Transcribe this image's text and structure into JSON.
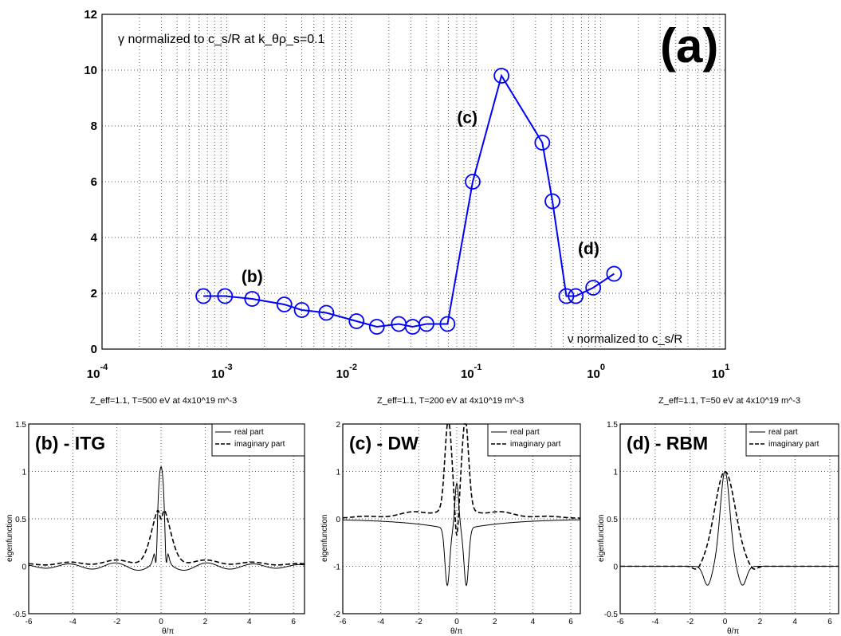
{
  "chart_data": [
    {
      "type": "line",
      "panel_label": "(a)",
      "annotation": "γ normalized to c_s/R at k_θρ_s=0.1",
      "xlabel": "ν normalized to c_s/R",
      "ylabel": "",
      "xscale": "log",
      "xlim_exp": [
        -4,
        1
      ],
      "ylim": [
        0,
        12
      ],
      "grid": true,
      "xtick_exponents": [
        "-4",
        "-3",
        "-2",
        "-1",
        "0",
        "1"
      ],
      "ytick_labels": [
        "0",
        "2",
        "4",
        "6",
        "8",
        "10",
        "12"
      ],
      "series": [
        {
          "color": "#0000ff",
          "marker": "circle",
          "x": [
            0.00065,
            0.00097,
            0.0016,
            0.0029,
            0.004,
            0.0063,
            0.011,
            0.016,
            0.024,
            0.031,
            0.04,
            0.059,
            0.094,
            0.16,
            0.34,
            0.41,
            0.53,
            0.63,
            0.87,
            1.28
          ],
          "y": [
            1.9,
            1.9,
            1.8,
            1.6,
            1.4,
            1.3,
            1.0,
            0.8,
            0.9,
            0.8,
            0.9,
            0.9,
            6.0,
            9.8,
            7.4,
            5.3,
            1.9,
            1.9,
            2.2,
            2.7
          ]
        }
      ],
      "point_labels": [
        {
          "text": "(b)",
          "x": 0.0016,
          "y": 2.4
        },
        {
          "text": "(c)",
          "x": 0.085,
          "y": 8.1
        },
        {
          "text": "(d)",
          "x": 0.8,
          "y": 3.4
        }
      ]
    },
    {
      "type": "line",
      "caption": "Z_eff=1.1, T=500 eV at 4x10^19 m^-3",
      "panel_label": "(b) - ITG",
      "xlabel": "θ/π",
      "ylabel": "eigenfunction",
      "xlim": [
        -6,
        6.5
      ],
      "ylim": [
        -0.5,
        1.5
      ],
      "xtick_labels": [
        "-6",
        "-4",
        "-2",
        "0",
        "2",
        "4",
        "6"
      ],
      "ytick_labels": [
        "-0.5",
        "0",
        "0.5",
        "1",
        "1.5"
      ],
      "legend": [
        "real part",
        "imaginary part"
      ],
      "legend_position": "top-right",
      "grid": true
    },
    {
      "type": "line",
      "caption": "Z_eff=1.1, T=200 eV at 4x10^19 m^-3",
      "panel_label": "(c) - DW",
      "xlabel": "θ/π",
      "ylabel": "eigenfunction",
      "xlim": [
        -6,
        6.5
      ],
      "ylim": [
        -2,
        2
      ],
      "xtick_labels": [
        "-6",
        "-4",
        "-2",
        "0",
        "2",
        "4",
        "6"
      ],
      "ytick_labels": [
        "-2",
        "-1",
        "0",
        "1",
        "2"
      ],
      "legend": [
        "real part",
        "imaginary part"
      ],
      "legend_position": "top-right",
      "grid": true
    },
    {
      "type": "line",
      "caption": "Z_eff=1.1, T=50 eV at 4x10^19 m^-3",
      "panel_label": "(d) - RBM",
      "xlabel": "θ/π",
      "ylabel": "eigenfunction",
      "xlim": [
        -6,
        6.5
      ],
      "ylim": [
        -0.5,
        1.5
      ],
      "xtick_labels": [
        "-6",
        "-4",
        "-2",
        "0",
        "2",
        "4",
        "6"
      ],
      "ytick_labels": [
        "-0.5",
        "0",
        "0.5",
        "1",
        "1.5"
      ],
      "legend": [
        "real part",
        "imaginary part"
      ],
      "legend_position": "top-right",
      "grid": true
    }
  ]
}
